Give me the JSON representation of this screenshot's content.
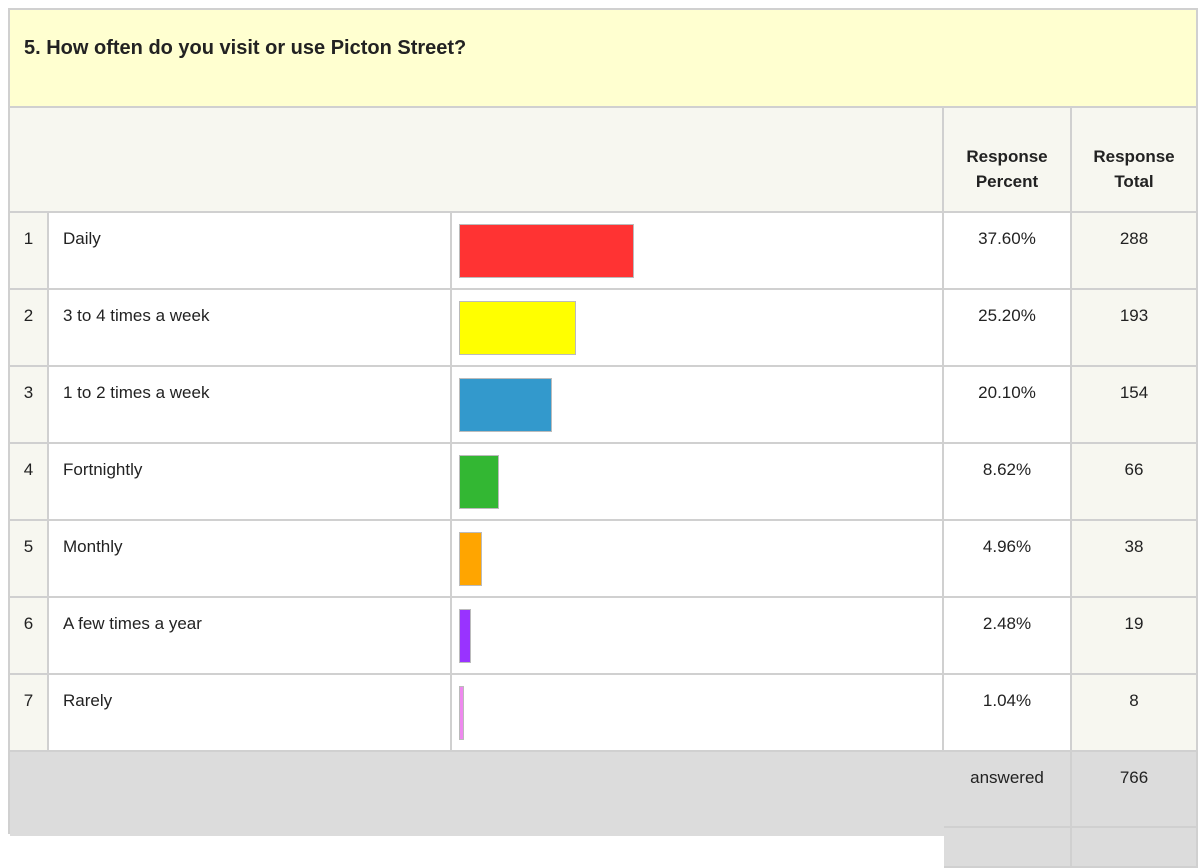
{
  "question": "5. How often do you visit or use Picton Street?",
  "header": {
    "percent": "Response Percent",
    "total": "Response Total"
  },
  "rows": [
    {
      "number": 1,
      "label": "Daily",
      "percent": 37.6,
      "percent_label": "37.60%",
      "total": 288,
      "color": "#ff3333"
    },
    {
      "number": 2,
      "label": "3 to 4 times a week",
      "percent": 25.2,
      "percent_label": "25.20%",
      "total": 193,
      "color": "#ffff00"
    },
    {
      "number": 3,
      "label": "1 to 2 times a week",
      "percent": 20.1,
      "percent_label": "20.10%",
      "total": 154,
      "color": "#3399cc"
    },
    {
      "number": 4,
      "label": "Fortnightly",
      "percent": 8.62,
      "percent_label": "8.62%",
      "total": 66,
      "color": "#33b733"
    },
    {
      "number": 5,
      "label": "Monthly",
      "percent": 4.96,
      "percent_label": "4.96%",
      "total": 38,
      "color": "#ffa500"
    },
    {
      "number": 6,
      "label": "A few times a year",
      "percent": 2.48,
      "percent_label": "2.48%",
      "total": 19,
      "color": "#9933ff"
    },
    {
      "number": 7,
      "label": "Rarely",
      "percent": 1.04,
      "percent_label": "1.04%",
      "total": 8,
      "color": "#ee88ee"
    }
  ],
  "footer": {
    "answered_label": "answered",
    "answered": 766
  }
}
